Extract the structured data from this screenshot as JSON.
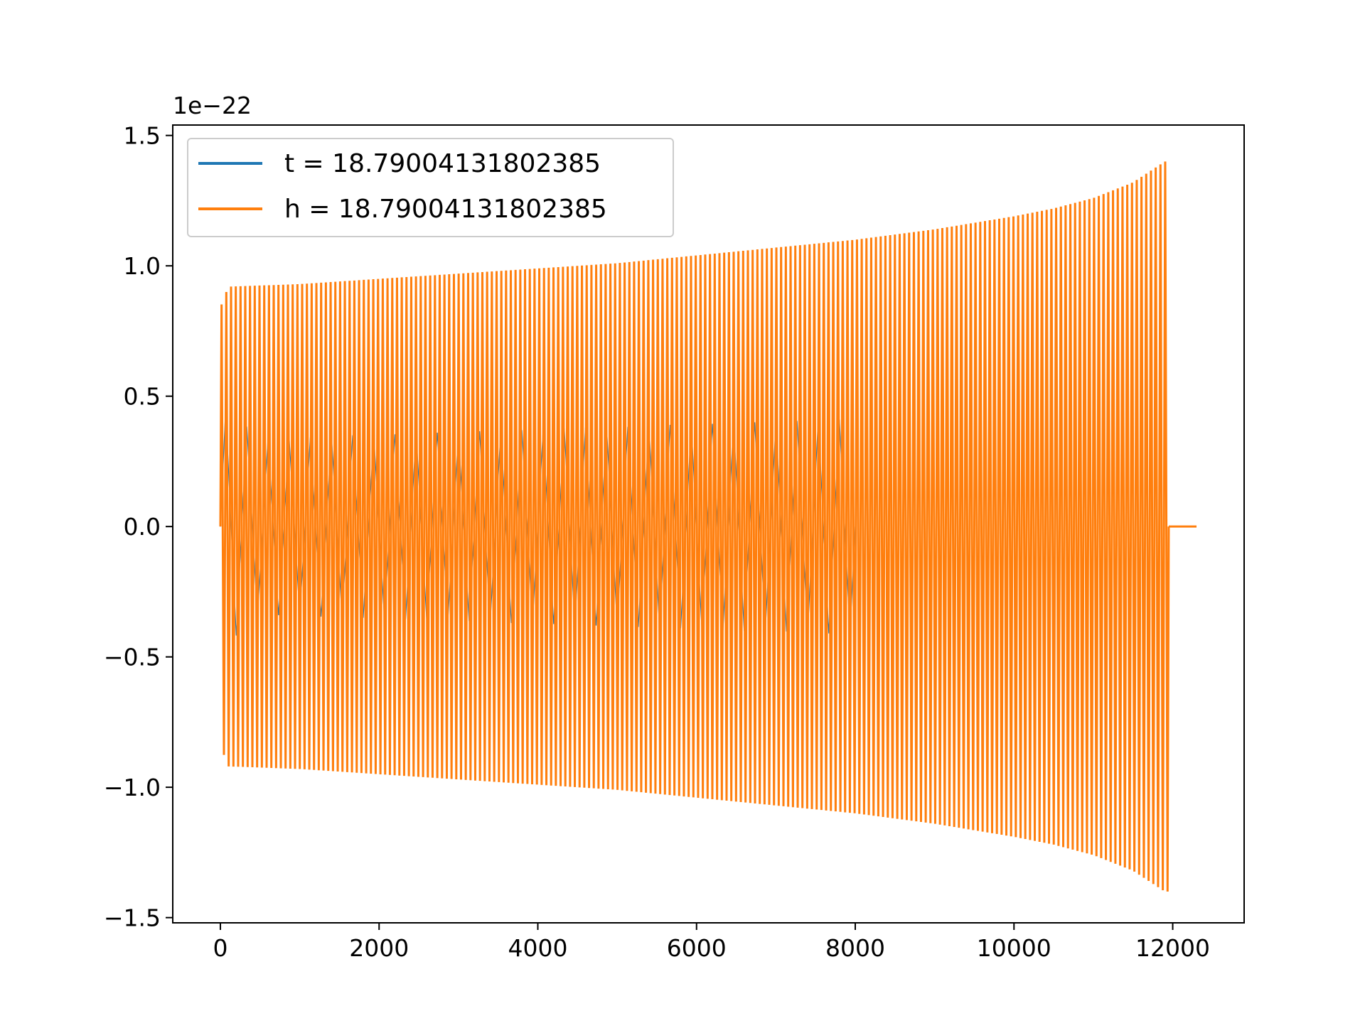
{
  "chart_data": {
    "type": "line",
    "title": "",
    "xlabel": "",
    "ylabel": "",
    "offset_text": "1e−22",
    "xlim": [
      -600,
      12900
    ],
    "ylim": [
      -1.52,
      1.54
    ],
    "xticks": [
      0,
      2000,
      4000,
      6000,
      8000,
      10000,
      12000
    ],
    "xtick_labels": [
      "0",
      "2000",
      "4000",
      "6000",
      "8000",
      "10000",
      "12000"
    ],
    "yticks": [
      -1.5,
      -1.0,
      -0.5,
      0.0,
      0.5,
      1.0,
      1.5
    ],
    "ytick_labels": [
      "−1.5",
      "−1.0",
      "−0.5",
      "0.0",
      "0.5",
      "1.0",
      "1.5"
    ],
    "grid": false,
    "legend_position": "top-left",
    "series": [
      {
        "name": "t = 18.79004131802385",
        "color": "#1f77b4",
        "x": [
          0,
          500,
          1000,
          1500,
          2000,
          2500,
          3000,
          3500,
          4000,
          4500,
          5000,
          5500,
          6000,
          6500,
          7000,
          7500,
          8000
        ],
        "envelope": [
          0.47,
          0.34,
          0.34,
          0.35,
          0.35,
          0.36,
          0.36,
          0.37,
          0.37,
          0.38,
          0.38,
          0.39,
          0.39,
          0.4,
          0.4,
          0.41,
          0.41
        ],
        "cycles": 30
      },
      {
        "name": "h = 18.79004131802385",
        "color": "#ff7f0e",
        "x": [
          0,
          100,
          1000,
          2000,
          3000,
          4000,
          5000,
          6000,
          7000,
          8000,
          9000,
          10000,
          10500,
          11000,
          11500,
          11900,
          11950
        ],
        "envelope": [
          0.84,
          0.92,
          0.93,
          0.95,
          0.97,
          0.99,
          1.01,
          1.04,
          1.07,
          1.1,
          1.14,
          1.19,
          1.22,
          1.26,
          1.32,
          1.4,
          1.4
        ],
        "cycles": 200,
        "flat_tail": [
          11950,
          12300
        ]
      }
    ]
  }
}
